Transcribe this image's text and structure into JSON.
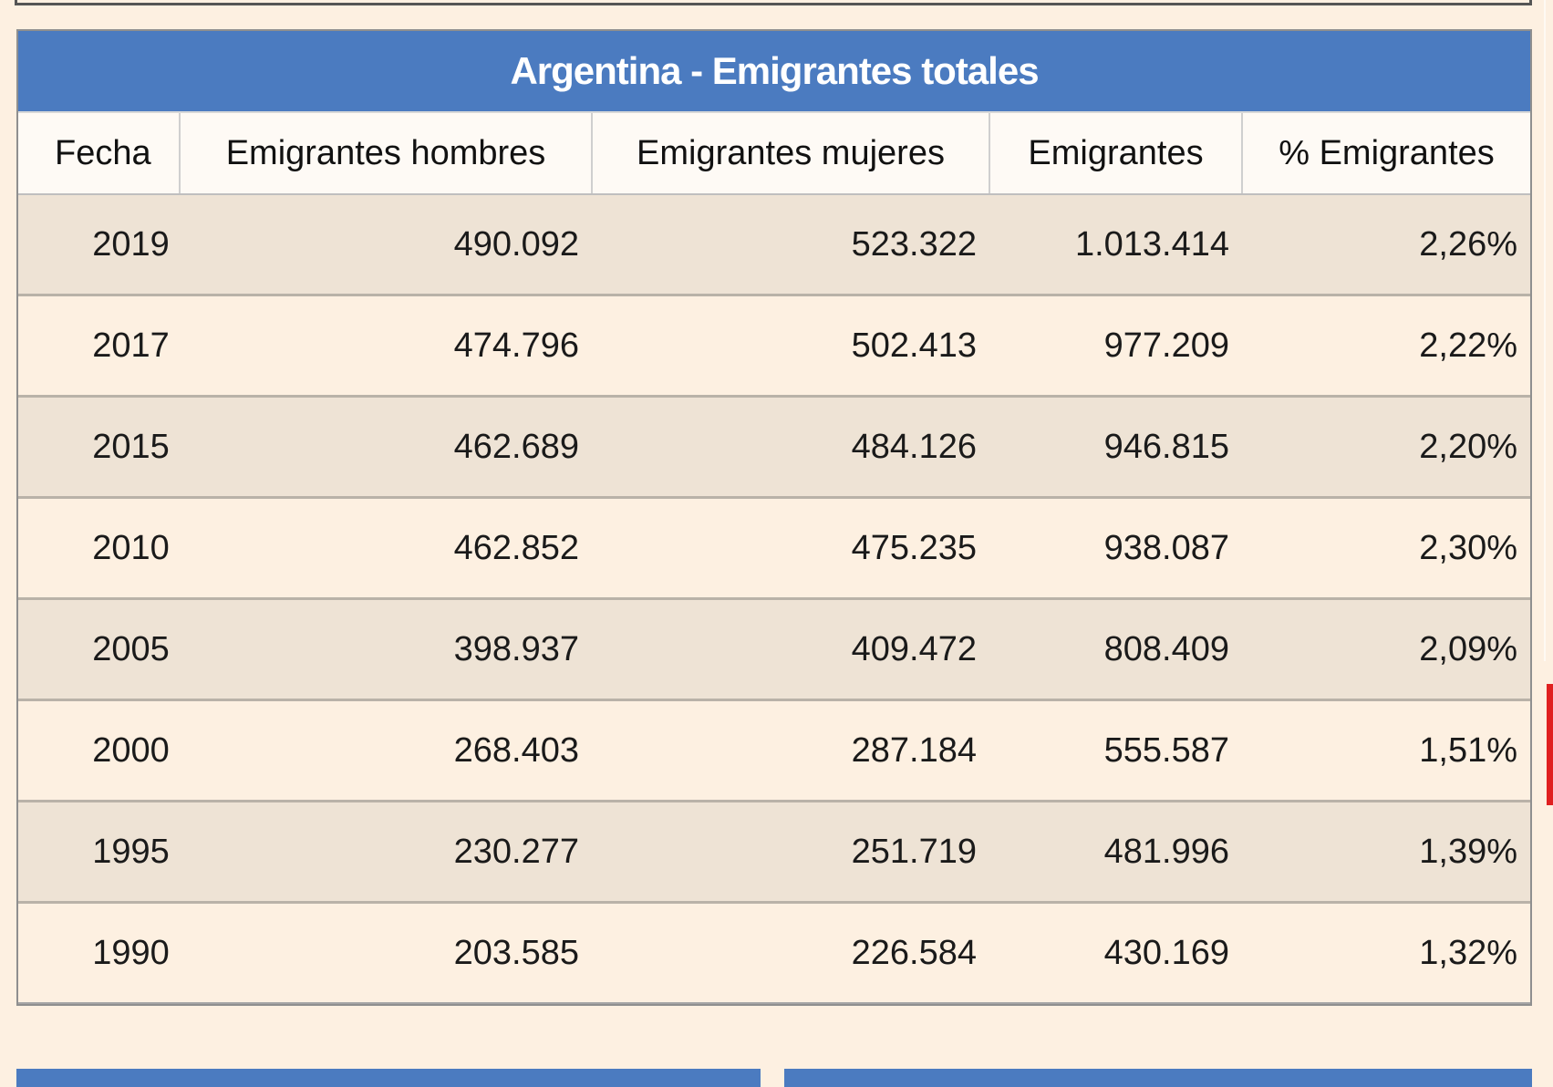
{
  "table": {
    "title": "Argentina - Emigrantes totales",
    "columns": [
      "Fecha",
      "Emigrantes hombres",
      "Emigrantes mujeres",
      "Emigrantes",
      "% Emigrantes"
    ],
    "rows": [
      [
        "2019",
        "490.092",
        "523.322",
        "1.013.414",
        "2,26%"
      ],
      [
        "2017",
        "474.796",
        "502.413",
        "977.209",
        "2,22%"
      ],
      [
        "2015",
        "462.689",
        "484.126",
        "946.815",
        "2,20%"
      ],
      [
        "2010",
        "462.852",
        "475.235",
        "938.087",
        "2,30%"
      ],
      [
        "2005",
        "398.937",
        "409.472",
        "808.409",
        "2,09%"
      ],
      [
        "2000",
        "268.403",
        "287.184",
        "555.587",
        "1,51%"
      ],
      [
        "1995",
        "230.277",
        "251.719",
        "481.996",
        "1,39%"
      ],
      [
        "1990",
        "203.585",
        "226.584",
        "430.169",
        "1,32%"
      ]
    ]
  },
  "colors": {
    "title_bar": "#4b7bc0",
    "page_background": "#fdf0e1",
    "row_alt": "#eee3d5",
    "side_marker": "#e02020"
  }
}
